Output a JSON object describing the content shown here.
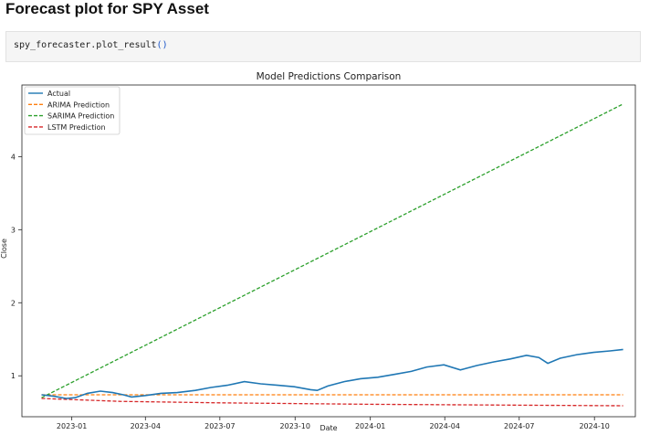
{
  "heading": "Forecast plot for SPY Asset",
  "code": {
    "call": "spy_forecaster.plot_result",
    "parens": "()"
  },
  "chart_data": {
    "type": "line",
    "title": "Model Predictions Comparison",
    "xlabel": "Date",
    "ylabel": "Close",
    "xlim": [
      "2022-11-01",
      "2024-11-20"
    ],
    "ylim": [
      0.44,
      4.98
    ],
    "x_ticks": [
      "2023-01",
      "2023-04",
      "2023-07",
      "2023-10",
      "2024-01",
      "2024-04",
      "2024-07",
      "2024-10"
    ],
    "y_ticks": [
      1,
      2,
      3,
      4
    ],
    "grid": false,
    "legend_position": "top-left",
    "colors": {
      "Actual": "#1f77b4",
      "ARIMA Prediction": "#ff7f0e",
      "SARIMA Prediction": "#2ca02c",
      "LSTM Prediction": "#d62728"
    },
    "series": [
      {
        "name": "Actual",
        "style": "solid",
        "x": [
          "2022-11-25",
          "2022-12-10",
          "2022-12-25",
          "2023-01-05",
          "2023-01-20",
          "2023-02-05",
          "2023-02-20",
          "2023-03-05",
          "2023-03-15",
          "2023-04-01",
          "2023-04-20",
          "2023-05-10",
          "2023-06-01",
          "2023-06-20",
          "2023-07-10",
          "2023-07-31",
          "2023-08-20",
          "2023-09-10",
          "2023-09-30",
          "2023-10-20",
          "2023-10-28",
          "2023-11-10",
          "2023-11-30",
          "2023-12-20",
          "2024-01-10",
          "2024-01-31",
          "2024-02-20",
          "2024-03-10",
          "2024-03-31",
          "2024-04-20",
          "2024-05-10",
          "2024-05-31",
          "2024-06-20",
          "2024-07-10",
          "2024-07-25",
          "2024-08-05",
          "2024-08-20",
          "2024-09-10",
          "2024-09-30",
          "2024-10-20",
          "2024-11-05"
        ],
        "y": [
          0.74,
          0.72,
          0.69,
          0.7,
          0.76,
          0.79,
          0.77,
          0.74,
          0.71,
          0.73,
          0.76,
          0.77,
          0.8,
          0.84,
          0.87,
          0.92,
          0.89,
          0.87,
          0.85,
          0.81,
          0.8,
          0.86,
          0.92,
          0.96,
          0.98,
          1.02,
          1.06,
          1.12,
          1.15,
          1.08,
          1.14,
          1.19,
          1.23,
          1.28,
          1.25,
          1.17,
          1.24,
          1.29,
          1.32,
          1.34,
          1.36
        ]
      },
      {
        "name": "ARIMA Prediction",
        "style": "dashed",
        "x": [
          "2022-11-25",
          "2024-11-05"
        ],
        "y": [
          0.74,
          0.74
        ]
      },
      {
        "name": "SARIMA Prediction",
        "style": "dashed",
        "x": [
          "2022-11-25",
          "2024-11-05"
        ],
        "y": [
          0.7,
          4.72
        ]
      },
      {
        "name": "LSTM Prediction",
        "style": "dashed",
        "x": [
          "2022-11-25",
          "2023-03-01",
          "2023-07-01",
          "2023-10-01",
          "2024-01-01",
          "2024-06-01",
          "2024-11-05"
        ],
        "y": [
          0.69,
          0.65,
          0.63,
          0.62,
          0.61,
          0.6,
          0.59
        ]
      }
    ]
  }
}
